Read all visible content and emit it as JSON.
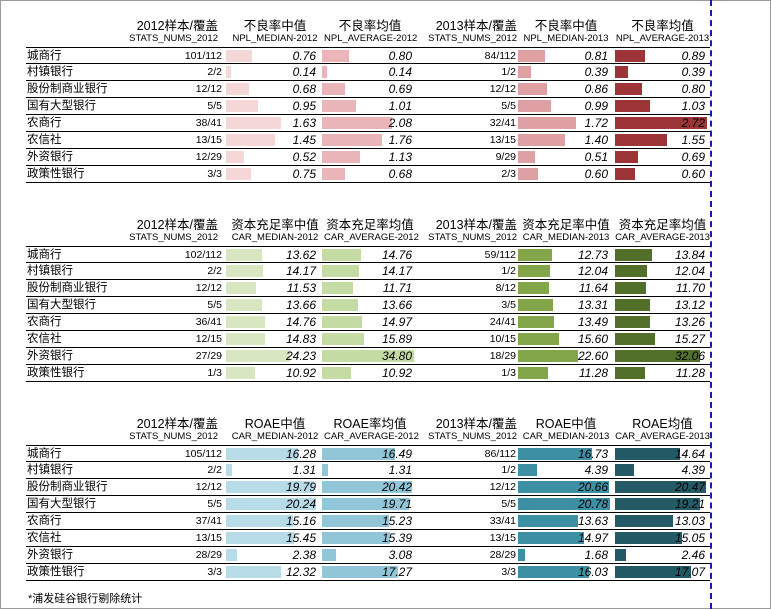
{
  "footnote": "*浦发硅谷银行剔除统计",
  "colors": {
    "npl": [
      "#f5d7d8",
      "#e9b5b8",
      "#dea0a3",
      "#9c3438"
    ],
    "car": [
      "#d8e6c2",
      "#c4dba4",
      "#84a64a",
      "#52702a"
    ],
    "roae": [
      "#b7dbe7",
      "#91c6d8",
      "#3d8fa3",
      "#245a66"
    ]
  },
  "tables": [
    {
      "key": "npl",
      "headers": {
        "h2012": "2012样本/覆盖",
        "h2012_code": "STATS_NUMS_2012",
        "m2012": "不良率中值",
        "m2012_code": "NPL_MEDIAN-2012",
        "a2012": "不良率均值",
        "a2012_code": "NPL_AVERAGE-2012",
        "h2013": "2013样本/覆盖",
        "h2013_code": "STATS_NUMS_2012",
        "m2013": "不良率中值",
        "m2013_code": "NPL_MEDIAN-2013",
        "a2013": "不良率均值",
        "a2013_code": "NPL_AVERAGE-2013"
      },
      "max": 2.72,
      "rows": [
        {
          "name": "城商行",
          "c2012": "101/112",
          "m2012": "0.76",
          "a2012": "0.80",
          "c2013": "84/112",
          "m2013": "0.81",
          "a2013": "0.89"
        },
        {
          "name": "村镇银行",
          "c2012": "2/2",
          "m2012": "0.14",
          "a2012": "0.14",
          "c2013": "1/2",
          "m2013": "0.39",
          "a2013": "0.39"
        },
        {
          "name": "股份制商业银行",
          "c2012": "12/12",
          "m2012": "0.68",
          "a2012": "0.69",
          "c2013": "12/12",
          "m2013": "0.86",
          "a2013": "0.80"
        },
        {
          "name": "国有大型银行",
          "c2012": "5/5",
          "m2012": "0.95",
          "a2012": "1.01",
          "c2013": "5/5",
          "m2013": "0.99",
          "a2013": "1.03"
        },
        {
          "name": "农商行",
          "c2012": "38/41",
          "m2012": "1.63",
          "a2012": "2.08",
          "c2013": "32/41",
          "m2013": "1.72",
          "a2013": "2.72"
        },
        {
          "name": "农信社",
          "c2012": "13/15",
          "m2012": "1.45",
          "a2012": "1.76",
          "c2013": "13/15",
          "m2013": "1.40",
          "a2013": "1.55"
        },
        {
          "name": "外资银行",
          "c2012": "12/29",
          "m2012": "0.52",
          "a2012": "1.13",
          "c2013": "9/29",
          "m2013": "0.51",
          "a2013": "0.69"
        },
        {
          "name": "政策性银行",
          "c2012": "3/3",
          "m2012": "0.75",
          "a2012": "0.68",
          "c2013": "2/3",
          "m2013": "0.60",
          "a2013": "0.60"
        }
      ]
    },
    {
      "key": "car",
      "headers": {
        "h2012": "2012样本/覆盖",
        "h2012_code": "STATS_NUMS_2012",
        "m2012": "资本充足率中值",
        "m2012_code": "CAR_MEDIAN-2012",
        "a2012": "资本充足率均值",
        "a2012_code": "CAR_AVERAGE-2012",
        "h2013": "2013样本/覆盖",
        "h2013_code": "STATS_NUMS_2012",
        "m2013": "资本充足率中值",
        "m2013_code": "CAR_MEDIAN-2013",
        "a2013": "资本充足率均值",
        "a2013_code": "CAR_AVERAGE-2013"
      },
      "max": 34.8,
      "rows": [
        {
          "name": "城商行",
          "c2012": "102/112",
          "m2012": "13.62",
          "a2012": "14.76",
          "c2013": "59/112",
          "m2013": "12.73",
          "a2013": "13.84"
        },
        {
          "name": "村镇银行",
          "c2012": "2/2",
          "m2012": "14.17",
          "a2012": "14.17",
          "c2013": "1/2",
          "m2013": "12.04",
          "a2013": "12.04"
        },
        {
          "name": "股份制商业银行",
          "c2012": "12/12",
          "m2012": "11.53",
          "a2012": "11.71",
          "c2013": "8/12",
          "m2013": "11.64",
          "a2013": "11.70"
        },
        {
          "name": "国有大型银行",
          "c2012": "5/5",
          "m2012": "13.66",
          "a2012": "13.66",
          "c2013": "3/5",
          "m2013": "13.31",
          "a2013": "13.12"
        },
        {
          "name": "农商行",
          "c2012": "36/41",
          "m2012": "14.76",
          "a2012": "14.97",
          "c2013": "24/41",
          "m2013": "13.49",
          "a2013": "13.26"
        },
        {
          "name": "农信社",
          "c2012": "12/15",
          "m2012": "14.83",
          "a2012": "15.89",
          "c2013": "10/15",
          "m2013": "15.60",
          "a2013": "15.27"
        },
        {
          "name": "外资银行",
          "c2012": "27/29",
          "m2012": "24.23",
          "a2012": "34.80",
          "c2013": "18/29",
          "m2013": "22.60",
          "a2013": "32.06"
        },
        {
          "name": "政策性银行",
          "c2012": "1/3",
          "m2012": "10.92",
          "a2012": "10.92",
          "c2013": "1/3",
          "m2013": "11.28",
          "a2013": "11.28"
        }
      ]
    },
    {
      "key": "roae",
      "headers": {
        "h2012": "2012样本/覆盖",
        "h2012_code": "STATS_NUMS_2012",
        "m2012": "ROAE中值",
        "m2012_code": "CAR_MEDIAN-2012",
        "a2012": "ROAE率均值",
        "a2012_code": "CAR_AVERAGE-2012",
        "h2013": "2013样本/覆盖",
        "h2013_code": "STATS_NUMS_2012",
        "m2013": "ROAE中值",
        "m2013_code": "CAR_MEDIAN-2013",
        "a2013": "ROAE均值",
        "a2013_code": "CAR_AVERAGE-2013"
      },
      "max": 20.78,
      "rows": [
        {
          "name": "城商行",
          "c2012": "105/112",
          "m2012": "16.28",
          "a2012": "16.49",
          "c2013": "86/112",
          "m2013": "16.73",
          "a2013": "14.64"
        },
        {
          "name": "村镇银行",
          "c2012": "2/2",
          "m2012": "1.31",
          "a2012": "1.31",
          "c2013": "1/2",
          "m2013": "4.39",
          "a2013": "4.39"
        },
        {
          "name": "股份制商业银行",
          "c2012": "12/12",
          "m2012": "19.79",
          "a2012": "20.42",
          "c2013": "12/12",
          "m2013": "20.66",
          "a2013": "20.47"
        },
        {
          "name": "国有大型银行",
          "c2012": "5/5",
          "m2012": "20.24",
          "a2012": "19.71",
          "c2013": "5/5",
          "m2013": "20.78",
          "a2013": "19.21"
        },
        {
          "name": "农商行",
          "c2012": "37/41",
          "m2012": "15.16",
          "a2012": "15.23",
          "c2013": "33/41",
          "m2013": "13.63",
          "a2013": "13.03"
        },
        {
          "name": "农信社",
          "c2012": "13/15",
          "m2012": "15.45",
          "a2012": "15.39",
          "c2013": "13/15",
          "m2013": "14.97",
          "a2013": "15.05"
        },
        {
          "name": "外资银行",
          "c2012": "28/29",
          "m2012": "2.38",
          "a2012": "3.08",
          "c2013": "28/29",
          "m2013": "1.68",
          "a2013": "2.46"
        },
        {
          "name": "政策性银行",
          "c2012": "3/3",
          "m2012": "12.32",
          "a2012": "17.27",
          "c2013": "3/3",
          "m2013": "16.03",
          "a2013": "17.07"
        }
      ]
    }
  ]
}
